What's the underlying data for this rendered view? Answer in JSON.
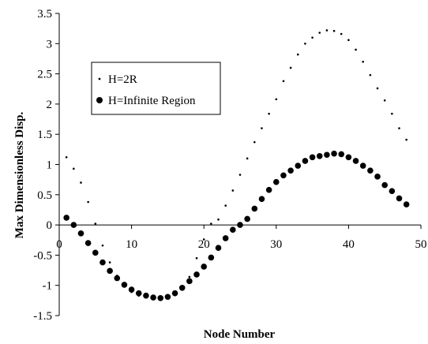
{
  "chart_data": {
    "type": "scatter",
    "title": "",
    "xlabel": "Node Number",
    "ylabel": "Max Dimensionless Disp.",
    "xlim": [
      0,
      50
    ],
    "ylim": [
      -1.5,
      3.5
    ],
    "x_ticks": [
      "0",
      "10",
      "20",
      "30",
      "40",
      "50"
    ],
    "y_ticks": [
      "-1.5",
      "-1",
      "-0.5",
      "0",
      "0.5",
      "1",
      "1.5",
      "2",
      "2.5",
      "3",
      "3.5"
    ],
    "grid": false,
    "legend_position": "upper-left",
    "series": [
      {
        "name": "H=2R",
        "marker": "small-dot",
        "color": "#000000",
        "x": [
          1,
          2,
          3,
          4,
          5,
          6,
          7,
          8,
          9,
          10,
          11,
          12,
          13,
          14,
          15,
          16,
          17,
          18,
          19,
          20,
          21,
          22,
          23,
          24,
          25,
          26,
          27,
          28,
          29,
          30,
          31,
          32,
          33,
          34,
          35,
          36,
          37,
          38,
          39,
          40,
          41,
          42,
          43,
          44,
          45,
          46,
          47,
          48
        ],
        "y": [
          1.12,
          0.93,
          0.7,
          0.38,
          0.02,
          -0.34,
          -0.62,
          -0.84,
          -1.0,
          -1.11,
          -1.17,
          -1.2,
          -1.22,
          -1.23,
          -1.21,
          -1.16,
          -1.05,
          -0.86,
          -0.55,
          -0.24,
          0.02,
          0.09,
          0.32,
          0.57,
          0.83,
          1.1,
          1.37,
          1.6,
          1.84,
          2.08,
          2.38,
          2.6,
          2.82,
          3.0,
          3.1,
          3.18,
          3.22,
          3.21,
          3.16,
          3.06,
          2.9,
          2.7,
          2.48,
          2.26,
          2.06,
          1.84,
          1.6,
          1.41
        ]
      },
      {
        "name": "H=Infinite Region",
        "marker": "large-dot",
        "color": "#000000",
        "x": [
          1,
          2,
          3,
          4,
          5,
          6,
          7,
          8,
          9,
          10,
          11,
          12,
          13,
          14,
          15,
          16,
          17,
          18,
          19,
          20,
          21,
          22,
          23,
          24,
          25,
          26,
          27,
          28,
          29,
          30,
          31,
          32,
          33,
          34,
          35,
          36,
          37,
          38,
          39,
          40,
          41,
          42,
          43,
          44,
          45,
          46,
          47,
          48
        ],
        "y": [
          0.12,
          0.0,
          -0.14,
          -0.3,
          -0.46,
          -0.62,
          -0.76,
          -0.88,
          -0.99,
          -1.07,
          -1.13,
          -1.17,
          -1.2,
          -1.21,
          -1.19,
          -1.13,
          -1.04,
          -0.93,
          -0.82,
          -0.69,
          -0.54,
          -0.38,
          -0.22,
          -0.08,
          0.0,
          0.1,
          0.27,
          0.43,
          0.58,
          0.71,
          0.82,
          0.9,
          0.98,
          1.06,
          1.12,
          1.14,
          1.16,
          1.18,
          1.17,
          1.12,
          1.06,
          0.98,
          0.9,
          0.8,
          0.66,
          0.56,
          0.44,
          0.34
        ]
      }
    ]
  }
}
